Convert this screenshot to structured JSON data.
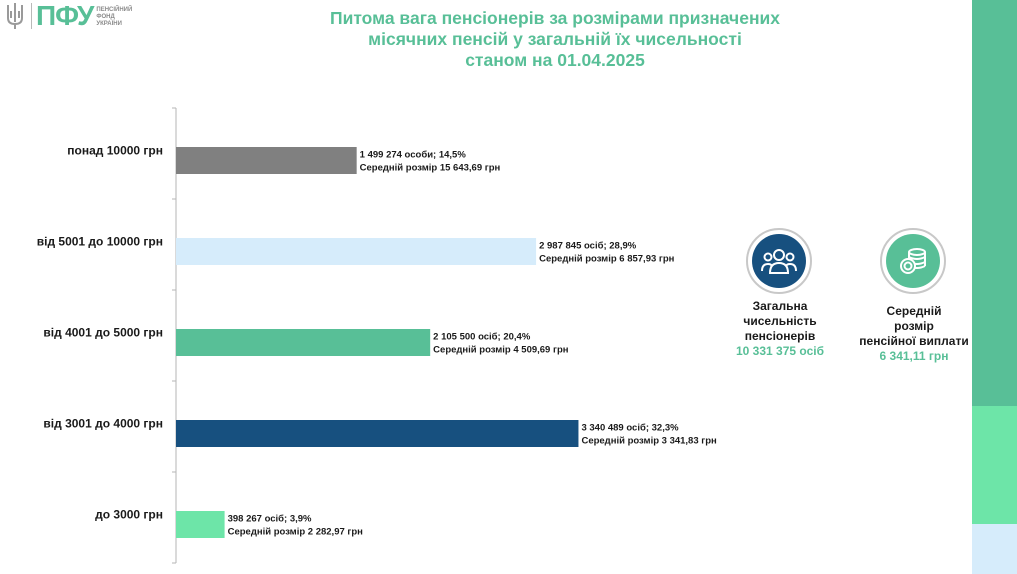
{
  "header": {
    "logo_text": "ПФУ",
    "logo_subtext": [
      "ПЕНСІЙНИЙ",
      "ФОНД",
      "УКРАЇНИ"
    ],
    "title_lines": [
      "Питома вага пенсіонерів за розмірами призначених",
      "місячних пенсій у загальній їх чисельності",
      "станом на 01.04.2025"
    ]
  },
  "chart_data": {
    "type": "bar",
    "orientation": "horizontal",
    "categories": [
      "понад 10000 грн",
      "від 5001 до 10000 грн",
      "від 4001 до 5000 грн",
      "від 3001 до 4000 грн",
      "до 3000 грн"
    ],
    "values": [
      14.5,
      28.9,
      20.4,
      32.3,
      3.9
    ],
    "colors": [
      "#808080",
      "#d6ecfb",
      "#58bf97",
      "#17507f",
      "#6de5a8"
    ],
    "labels": [
      [
        "1 499 274 особи;  14,5%",
        "Середній розмір 15 643,69 грн"
      ],
      [
        "2 987 845 осіб; 28,9%",
        "Середній розмір 6 857,93 грн"
      ],
      [
        "2 105 500 осіб; 20,4%",
        "Середній розмір 4 509,69 грн"
      ],
      [
        "3 340 489 осіб; 32,3%",
        "Середній розмір 3 341,83 грн"
      ],
      [
        "398 267 осіб; 3,9%",
        "Середній розмір 2 282,97 грн"
      ]
    ]
  },
  "stats": {
    "total": {
      "label_lines": [
        "Загальна",
        "чисельність",
        "пенсіонерів"
      ],
      "value": "10 331 375 осіб",
      "icon": "people-icon"
    },
    "average": {
      "label_lines": [
        "Середній",
        "розмір",
        "пенсійної виплати"
      ],
      "value": "6 341,11 грн",
      "icon": "coins-icon"
    }
  },
  "colors": {
    "accent": "#58bf97",
    "dark_blue": "#17507f",
    "light_blue": "#d6ecfb",
    "mint": "#6de5a8",
    "gray": "#808080"
  }
}
